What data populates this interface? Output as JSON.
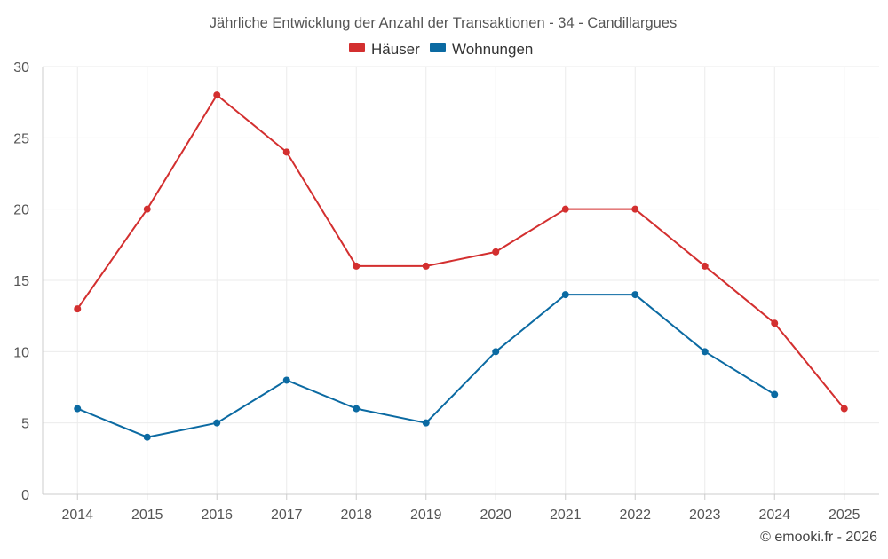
{
  "chart_data": {
    "type": "line",
    "title": "Jährliche Entwicklung der Anzahl der Transaktionen - 34 - Candillargues",
    "xlabel": "",
    "ylabel": "",
    "categories": [
      "2014",
      "2015",
      "2016",
      "2017",
      "2018",
      "2019",
      "2020",
      "2021",
      "2022",
      "2023",
      "2024",
      "2025"
    ],
    "ylim": [
      0,
      30
    ],
    "yticks": [
      "0",
      "5",
      "10",
      "15",
      "20",
      "25",
      "30"
    ],
    "grid": true,
    "legend_position": "top-center",
    "series": [
      {
        "name": "Häuser",
        "color": "#d32f2f",
        "values": [
          13,
          20,
          28,
          24,
          16,
          16,
          17,
          20,
          20,
          16,
          12,
          6
        ]
      },
      {
        "name": "Wohnungen",
        "color": "#0b6aa2",
        "values": [
          6,
          4,
          5,
          8,
          6,
          5,
          10,
          14,
          14,
          10,
          7,
          null
        ]
      }
    ]
  },
  "footer": {
    "credit": "© emooki.fr - 2026"
  }
}
